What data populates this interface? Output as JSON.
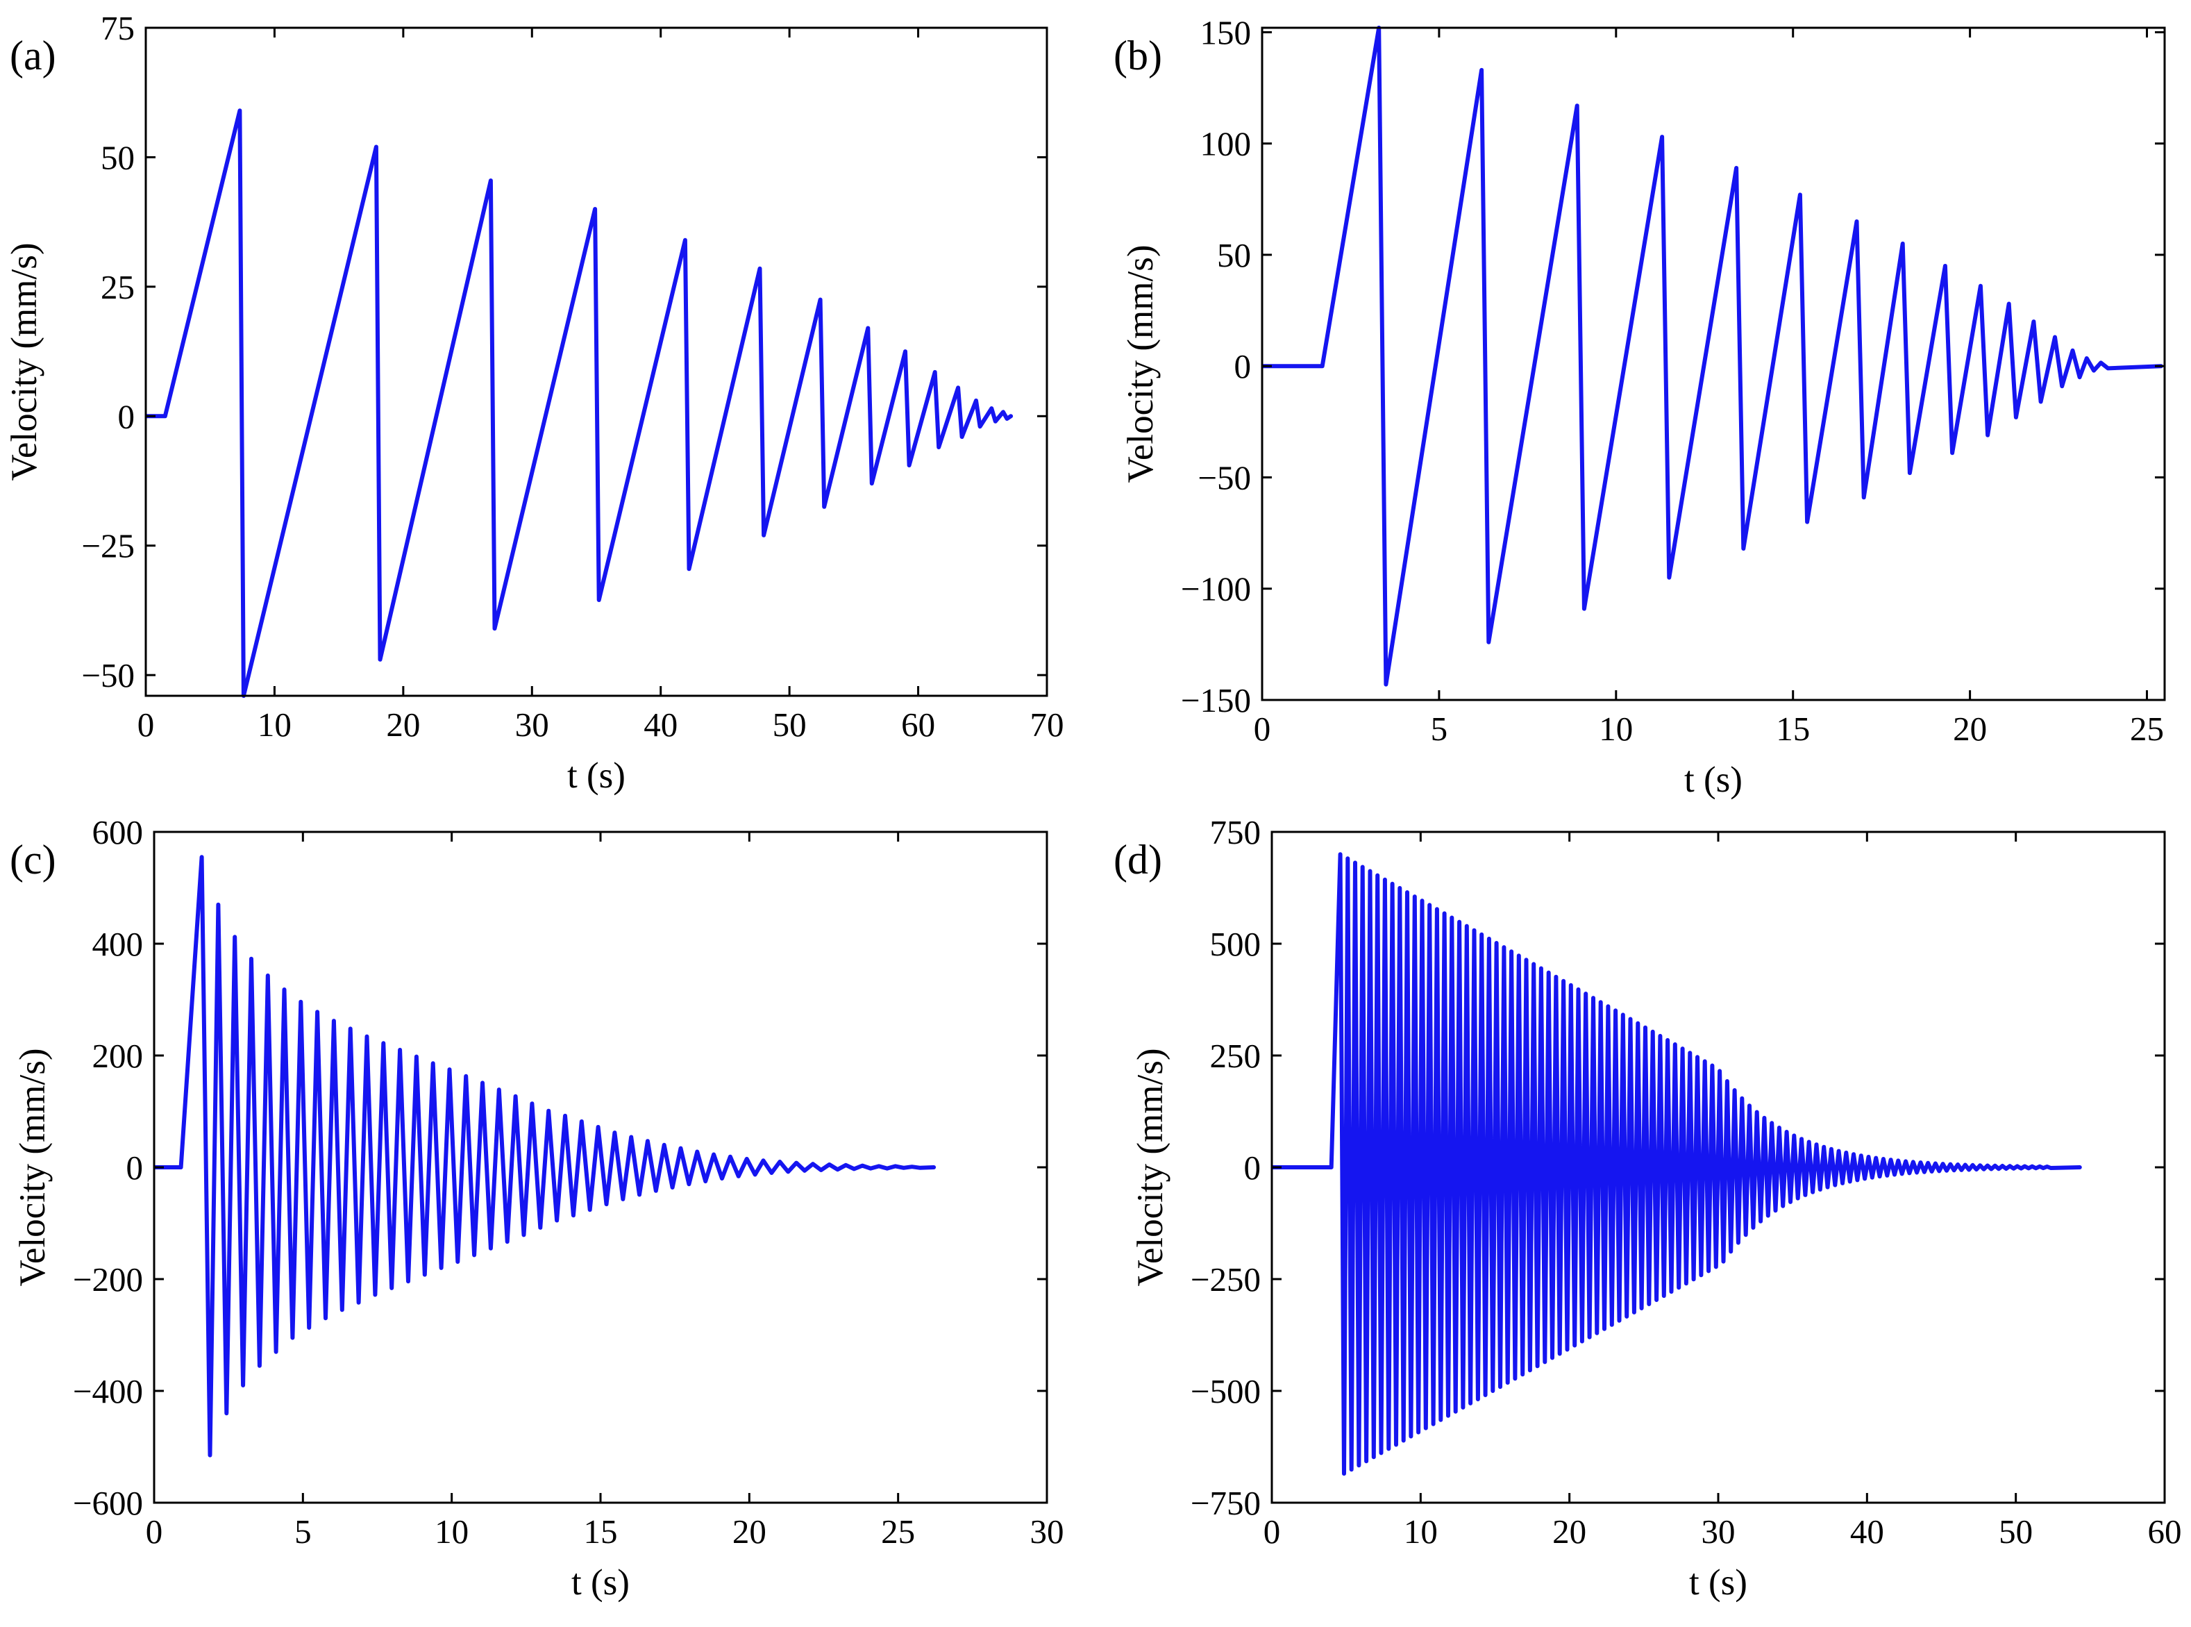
{
  "line_color": "#1515f0",
  "chart_data": [
    {
      "panel": "(a)",
      "type": "line",
      "title": "",
      "xlabel": "t (s)",
      "ylabel": "Velocity (mm/s)",
      "xlim": [
        0,
        70
      ],
      "ylim": [
        -54,
        75
      ],
      "xticks": [
        0,
        10,
        20,
        30,
        40,
        50,
        60,
        70
      ],
      "yticks": [
        -50,
        -25,
        0,
        25,
        50,
        75
      ],
      "xtick_labels": [
        "0",
        "10",
        "20",
        "30",
        "40",
        "50",
        "60",
        "70"
      ],
      "ytick_labels": [
        "−50",
        "−25",
        "0",
        "25",
        "50",
        "75"
      ],
      "grid": false,
      "series": [
        {
          "name": "velocity",
          "t_start": 1.5,
          "t_end": 67.2,
          "peaks": [
            [
              7.3,
              59
            ],
            [
              17.9,
              52
            ],
            [
              26.8,
              45.5
            ],
            [
              34.9,
              40
            ],
            [
              41.9,
              34
            ],
            [
              47.7,
              28.5
            ],
            [
              52.4,
              22.5
            ],
            [
              56.1,
              17
            ],
            [
              59.0,
              12.5
            ],
            [
              61.3,
              8.5
            ],
            [
              63.1,
              5.5
            ],
            [
              64.5,
              3
            ],
            [
              65.7,
              1.5
            ],
            [
              66.6,
              0.8
            ]
          ],
          "troughs": [
            [
              7.6,
              -54
            ],
            [
              18.2,
              -47
            ],
            [
              27.1,
              -41
            ],
            [
              35.2,
              -35.5
            ],
            [
              42.2,
              -29.5
            ],
            [
              48.0,
              -23
            ],
            [
              52.7,
              -17.5
            ],
            [
              56.4,
              -13
            ],
            [
              59.3,
              -9.5
            ],
            [
              61.6,
              -6
            ],
            [
              63.4,
              -4
            ],
            [
              64.8,
              -2
            ],
            [
              66.0,
              -1
            ],
            [
              66.9,
              -0.5
            ]
          ]
        }
      ]
    },
    {
      "panel": "(b)",
      "type": "line",
      "title": "",
      "xlabel": "t (s)",
      "ylabel": "Velocity (mm/s)",
      "xlim": [
        0,
        25.5
      ],
      "ylim": [
        -150,
        152
      ],
      "xticks": [
        0,
        5,
        10,
        15,
        20,
        25
      ],
      "yticks": [
        -150,
        -100,
        -50,
        0,
        50,
        100,
        150
      ],
      "xtick_labels": [
        "0",
        "5",
        "10",
        "15",
        "20",
        "25"
      ],
      "ytick_labels": [
        "−150",
        "−100",
        "−50",
        "0",
        "50",
        "100",
        "150"
      ],
      "grid": false,
      "series": [
        {
          "name": "velocity",
          "t_start": 1.7,
          "t_end": 25.4,
          "peaks": [
            [
              3.3,
              152
            ],
            [
              6.2,
              133
            ],
            [
              8.9,
              117
            ],
            [
              11.3,
              103
            ],
            [
              13.4,
              89
            ],
            [
              15.2,
              77
            ],
            [
              16.8,
              65
            ],
            [
              18.1,
              55
            ],
            [
              19.3,
              45
            ],
            [
              20.3,
              36
            ],
            [
              21.1,
              28
            ],
            [
              21.8,
              20
            ],
            [
              22.4,
              13
            ],
            [
              22.9,
              7
            ],
            [
              23.3,
              3.5
            ],
            [
              23.7,
              1.5
            ]
          ],
          "troughs": [
            [
              3.5,
              -143
            ],
            [
              6.4,
              -124
            ],
            [
              9.1,
              -109
            ],
            [
              11.5,
              -95
            ],
            [
              13.6,
              -82
            ],
            [
              15.4,
              -70
            ],
            [
              17.0,
              -59
            ],
            [
              18.3,
              -48
            ],
            [
              19.5,
              -39
            ],
            [
              20.5,
              -31
            ],
            [
              21.3,
              -23
            ],
            [
              22.0,
              -16
            ],
            [
              22.6,
              -9
            ],
            [
              23.1,
              -5
            ],
            [
              23.5,
              -2
            ],
            [
              23.9,
              -1
            ]
          ]
        }
      ]
    },
    {
      "panel": "(c)",
      "type": "line",
      "title": "",
      "xlabel": "t (s)",
      "ylabel": "Velocity (mm/s)",
      "xlim": [
        0,
        30
      ],
      "ylim": [
        -600,
        600
      ],
      "xticks": [
        0,
        5,
        10,
        15,
        20,
        25,
        30
      ],
      "yticks": [
        -600,
        -400,
        -200,
        0,
        200,
        400,
        600
      ],
      "xtick_labels": [
        "0",
        "5",
        "10",
        "15",
        "20",
        "25",
        "30"
      ],
      "ytick_labels": [
        "−600",
        "−400",
        "−200",
        "0",
        "200",
        "400",
        "600"
      ],
      "grid": false,
      "series": [
        {
          "name": "velocity",
          "t_start": 0.9,
          "t_end": 26.2,
          "first_peak_t": 1.6,
          "period": 0.555,
          "cycles": 44,
          "peak_values": [
            555,
            470,
            412,
            373,
            343,
            318,
            296,
            278,
            262,
            248,
            234,
            222,
            210,
            198,
            186,
            175,
            163,
            151,
            139,
            127,
            114,
            101,
            92,
            82,
            72,
            62,
            54,
            47,
            40,
            34,
            28,
            23,
            19,
            15,
            12,
            10,
            8,
            6,
            5,
            4,
            3,
            2,
            2,
            1
          ],
          "trough_values": [
            -515,
            -440,
            -390,
            -355,
            -330,
            -305,
            -287,
            -270,
            -255,
            -242,
            -228,
            -216,
            -204,
            -192,
            -180,
            -169,
            -157,
            -145,
            -133,
            -121,
            -108,
            -95,
            -86,
            -76,
            -66,
            -57,
            -49,
            -42,
            -36,
            -30,
            -25,
            -20,
            -16,
            -13,
            -10,
            -8,
            -6,
            -5,
            -4,
            -3,
            -2,
            -2,
            -1,
            -1
          ]
        }
      ]
    },
    {
      "panel": "(d)",
      "type": "line",
      "title": "",
      "xlabel": "t (s)",
      "ylabel": "Velocity (mm/s)",
      "xlim": [
        0,
        60
      ],
      "ylim": [
        -750,
        750
      ],
      "xticks": [
        0,
        10,
        20,
        30,
        40,
        50,
        60
      ],
      "yticks": [
        -750,
        -500,
        -250,
        0,
        250,
        500,
        750
      ],
      "xtick_labels": [
        "0",
        "10",
        "20",
        "30",
        "40",
        "50",
        "60"
      ],
      "ytick_labels": [
        "−750",
        "−500",
        "−250",
        "0",
        "250",
        "500",
        "750"
      ],
      "grid": false,
      "series": [
        {
          "name": "velocity",
          "t_start": 4.0,
          "t_end": 54.3,
          "first_peak_t": 4.6,
          "period": 0.5,
          "cycles": 96,
          "peak_start": 700,
          "peak_linear_end_t": 30,
          "peak_at_linear_end": 220,
          "trough_start": -685,
          "decay_tail_tau": 4.5
        }
      ]
    }
  ]
}
